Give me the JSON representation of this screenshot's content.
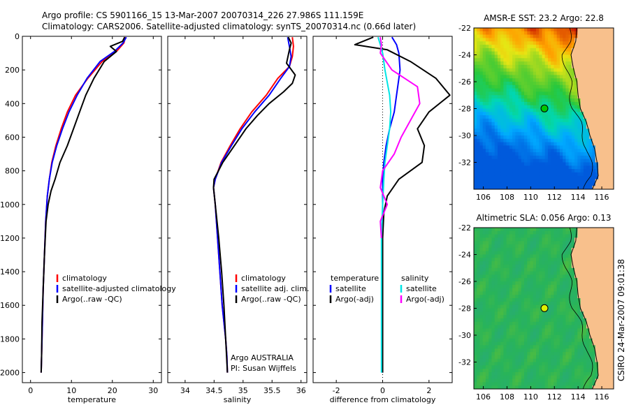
{
  "header": {
    "line1": "Argo profile: CS 5901166_15 13-Mar-2007 20070314_226 27.986S 111.159E",
    "line2": "Climatology: CARS2006. Satellite-adjusted climatology: synTS_20070314.nc (0.66d later)"
  },
  "colors": {
    "climatology": "#ff0000",
    "satellite": "#0000ff",
    "argo": "#000000",
    "sat_diff": "#00e5e5",
    "argo_sal_diff": "#ff00ff",
    "land": "#f8c08c"
  },
  "chart_data": [
    {
      "type": "line",
      "id": "temperature",
      "xlabel": "temperature",
      "ylabel": "",
      "xlim": [
        -2,
        32
      ],
      "ylim": [
        2060,
        0
      ],
      "yreversed": true,
      "xticks": [
        0,
        10,
        20,
        30
      ],
      "yticks": [
        0,
        200,
        400,
        600,
        800,
        1000,
        1200,
        1400,
        1600,
        1800,
        2000
      ],
      "series": [
        {
          "name": "climatology",
          "color": "#ff0000",
          "x": [
            23.2,
            22.8,
            21.0,
            17.5,
            14.0,
            11.0,
            9.0,
            7.5,
            6.2,
            5.2,
            4.6,
            4.1,
            3.7,
            3.4,
            3.1,
            2.9,
            2.7,
            2.6
          ],
          "y": [
            5,
            40,
            90,
            150,
            250,
            350,
            450,
            550,
            650,
            750,
            850,
            950,
            1100,
            1300,
            1500,
            1700,
            1900,
            2000
          ]
        },
        {
          "name": "satellite-adjusted climatology",
          "color": "#0000ff",
          "x": [
            23.4,
            22.6,
            20.5,
            17.0,
            13.8,
            11.4,
            9.4,
            7.8,
            6.4,
            5.3,
            4.6,
            4.1,
            3.7,
            3.4,
            3.1,
            2.9,
            2.7,
            2.6
          ],
          "y": [
            5,
            40,
            90,
            150,
            250,
            350,
            450,
            550,
            650,
            750,
            850,
            950,
            1100,
            1300,
            1500,
            1700,
            1900,
            2000
          ]
        },
        {
          "name": "Argo(..raw -QC)",
          "color": "#000000",
          "x": [
            23.0,
            22.5,
            19.5,
            21.0,
            18.0,
            15.5,
            13.5,
            12.0,
            10.5,
            9.0,
            7.2,
            6.0,
            5.0,
            4.3,
            3.8,
            3.4,
            3.1,
            2.8,
            2.7,
            2.6
          ],
          "y": [
            5,
            30,
            60,
            90,
            150,
            250,
            350,
            450,
            550,
            650,
            750,
            850,
            920,
            1000,
            1100,
            1300,
            1500,
            1700,
            1900,
            2000
          ]
        }
      ],
      "legend": [
        "climatology",
        "satellite-adjusted climatology",
        "Argo(..raw -QC)"
      ]
    },
    {
      "type": "line",
      "id": "salinity",
      "xlabel": "salinity",
      "ylabel": "",
      "xlim": [
        33.7,
        36.1
      ],
      "ylim": [
        2060,
        0
      ],
      "yreversed": true,
      "xticks": [
        34,
        34.5,
        35,
        35.5,
        36
      ],
      "series": [
        {
          "name": "climatology",
          "color": "#ff0000",
          "x": [
            35.85,
            35.87,
            35.85,
            35.8,
            35.6,
            35.4,
            35.15,
            34.95,
            34.78,
            34.62,
            34.52,
            34.49,
            34.52,
            34.56,
            34.6,
            34.64,
            34.67,
            34.7,
            34.72,
            34.73
          ],
          "y": [
            5,
            60,
            120,
            180,
            250,
            350,
            450,
            550,
            650,
            750,
            850,
            900,
            1000,
            1200,
            1400,
            1600,
            1700,
            1800,
            1900,
            2000
          ]
        },
        {
          "name": "satellite adj. clim.",
          "color": "#0000ff",
          "x": [
            35.77,
            35.8,
            35.83,
            35.8,
            35.65,
            35.45,
            35.2,
            34.98,
            34.8,
            34.63,
            34.52,
            34.49,
            34.52,
            34.56,
            34.6,
            34.64,
            34.67,
            34.7,
            34.72,
            34.73
          ],
          "y": [
            5,
            60,
            120,
            180,
            250,
            350,
            450,
            550,
            650,
            750,
            850,
            900,
            1000,
            1200,
            1400,
            1600,
            1700,
            1800,
            1900,
            2000
          ]
        },
        {
          "name": "Argo(..raw -QC)",
          "color": "#000000",
          "x": [
            35.78,
            35.83,
            35.8,
            35.75,
            35.9,
            35.85,
            35.7,
            35.45,
            35.25,
            35.05,
            34.85,
            34.65,
            34.5,
            34.49,
            34.52,
            34.58,
            34.63,
            34.67,
            34.7,
            34.73
          ],
          "y": [
            5,
            40,
            80,
            160,
            230,
            280,
            330,
            400,
            470,
            550,
            650,
            750,
            850,
            900,
            1000,
            1200,
            1400,
            1600,
            1800,
            2000
          ]
        }
      ],
      "legend": [
        "climatology",
        "satellite adj. clim.",
        "Argo(..raw -QC)"
      ],
      "credit": [
        "Argo AUSTRALIA",
        "PI: Susan Wijffels"
      ]
    },
    {
      "type": "line",
      "id": "difference",
      "xlabel": "difference from climatology",
      "ylabel": "",
      "xlim": [
        -3,
        3
      ],
      "ylim": [
        2060,
        0
      ],
      "yreversed": true,
      "xticks": [
        -2,
        0,
        2
      ],
      "series": [
        {
          "name": "temperature satellite",
          "color": "#0000ff",
          "x": [
            0.4,
            0.6,
            0.7,
            0.75,
            0.6,
            0.5,
            0.3,
            0.15,
            0.05,
            0.0,
            0.0,
            0.0,
            0.0,
            0.0,
            0.0
          ],
          "y": [
            5,
            50,
            100,
            200,
            350,
            450,
            550,
            650,
            750,
            850,
            1000,
            1200,
            1500,
            1800,
            2000
          ]
        },
        {
          "name": "temperature Argo(-adj)",
          "color": "#000000",
          "x": [
            -0.4,
            -1.2,
            0.2,
            1.2,
            2.3,
            2.9,
            2.0,
            1.5,
            1.8,
            1.7,
            0.7,
            0.2,
            0.05,
            0.0,
            0.0,
            0.0
          ],
          "y": [
            5,
            50,
            80,
            150,
            250,
            350,
            450,
            550,
            650,
            750,
            850,
            950,
            1050,
            1200,
            1500,
            2000
          ]
        },
        {
          "name": "salinity satellite",
          "color": "#00e5e5",
          "x": [
            -0.2,
            -0.1,
            0.0,
            0.1,
            0.3,
            0.35,
            0.3,
            0.2,
            0.1,
            0.05,
            0.0,
            -0.05,
            -0.05,
            -0.05
          ],
          "y": [
            5,
            50,
            100,
            200,
            350,
            450,
            550,
            650,
            750,
            850,
            1000,
            1200,
            1500,
            2000
          ]
        },
        {
          "name": "salinity Argo(-adj)",
          "color": "#ff00ff",
          "x": [
            -0.1,
            -0.05,
            -0.1,
            0.4,
            1.5,
            1.6,
            1.2,
            0.8,
            0.5,
            0.0,
            -0.1,
            0.2,
            -0.1,
            -0.05
          ],
          "y": [
            5,
            50,
            100,
            200,
            300,
            400,
            500,
            600,
            700,
            800,
            900,
            1000,
            1100,
            1200
          ]
        }
      ],
      "legend_temperature": {
        "title": "temperature",
        "items": [
          "satellite",
          "Argo(-adj)"
        ]
      },
      "legend_salinity": {
        "title": "salinity",
        "items": [
          "satellite",
          "Argo(-adj)"
        ]
      },
      "zero_line": "dotted"
    },
    {
      "type": "heatmap",
      "id": "sst_map",
      "title": "AMSR-E SST: 23.2 Argo: 22.8",
      "xlim": [
        105.2,
        117
      ],
      "ylim": [
        -34,
        -22
      ],
      "xticks": [
        106,
        108,
        110,
        112,
        114,
        116
      ],
      "yticks": [
        -22,
        -24,
        -26,
        -28,
        -30,
        -32
      ],
      "argo_marker": {
        "lon": 111.16,
        "lat": -27.99,
        "color": "#00c800"
      }
    },
    {
      "type": "heatmap",
      "id": "sla_map",
      "title": "Altimetric SLA: 0.056 Argo: 0.13",
      "xlim": [
        105.2,
        117
      ],
      "ylim": [
        -34,
        -22
      ],
      "xticks": [
        106,
        108,
        110,
        112,
        114,
        116
      ],
      "yticks": [
        -22,
        -24,
        -26,
        -28,
        -30,
        -32
      ],
      "argo_marker": {
        "lon": 111.16,
        "lat": -27.99,
        "color": "#dcf000"
      }
    }
  ],
  "footer": {
    "stamp": "CSIRO 24-Mar-2007 09:01:38"
  }
}
